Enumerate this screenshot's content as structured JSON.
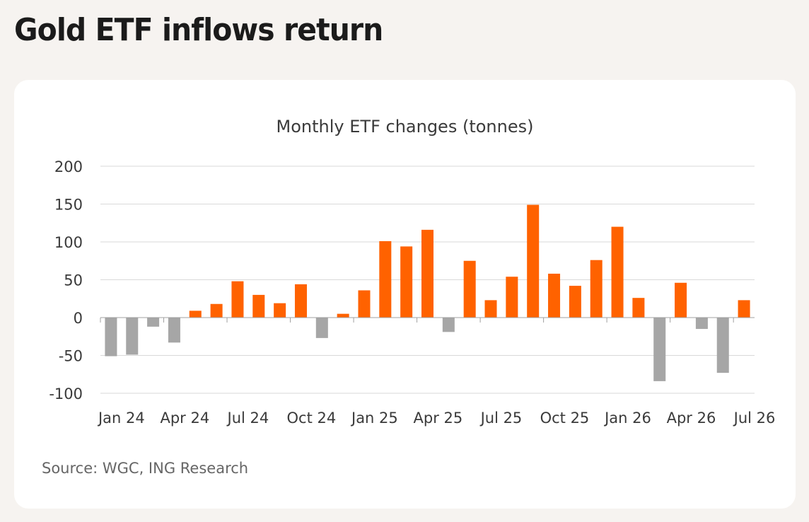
{
  "page_title": "Gold ETF inflows return",
  "source": "Source: WGC, ING Research",
  "colors": {
    "positive": "#ff6200",
    "negative": "#a6a6a6",
    "grid": "#d9d9d9",
    "axis": "#a0a0a0",
    "text": "#3a3a3a",
    "background": "#f6f3f0",
    "card": "#ffffff"
  },
  "chart_data": {
    "type": "bar",
    "title": "Monthly ETF changes (tonnes)",
    "xlabel": "",
    "ylabel": "",
    "ylim": [
      -100,
      200
    ],
    "yticks": [
      200,
      150,
      100,
      50,
      0,
      -50,
      -100
    ],
    "ytick_labels": [
      "200",
      "150",
      "100",
      "50",
      "0",
      "-50",
      "-100"
    ],
    "grid": true,
    "legend": "none",
    "xtick_labels": [
      "Jan 24",
      "Apr 24",
      "Jul 24",
      "Oct 24",
      "Jan 25",
      "Apr 25",
      "Jul 25",
      "Oct 25",
      "Jan 26",
      "Apr 26",
      "Jul 26"
    ],
    "categories": [
      "Jan 24",
      "Feb 24",
      "Mar 24",
      "Apr 24",
      "May 24",
      "Jun 24",
      "Jul 24",
      "Aug 24",
      "Sep 24",
      "Oct 24",
      "Nov 24",
      "Dec 24",
      "Jan 25",
      "Feb 25",
      "Mar 25",
      "Apr 25",
      "May 25",
      "Jun 25",
      "Jul 25",
      "Aug 25",
      "Sep 25",
      "Oct 25",
      "Nov 25",
      "Dec 25",
      "Jan 26",
      "Feb 26",
      "Mar 26",
      "Apr 26",
      "May 26",
      "Jun 26",
      "Jul 26"
    ],
    "values": [
      -51,
      -49,
      -12,
      -33,
      9,
      18,
      48,
      30,
      19,
      44,
      -27,
      5,
      36,
      101,
      94,
      116,
      -19,
      75,
      23,
      54,
      149,
      58,
      42,
      76,
      120,
      26,
      -84,
      46,
      -15,
      -73,
      23
    ]
  }
}
